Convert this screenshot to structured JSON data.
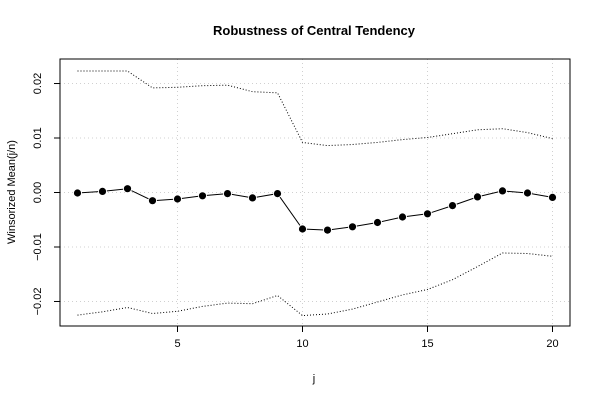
{
  "chart_data": {
    "type": "line",
    "title": "Robustness of Central Tendency",
    "xlabel": "j",
    "ylabel": "Winsorized Mean(j/n)",
    "xlim": [
      0.3,
      20.7
    ],
    "ylim": [
      -0.0245,
      0.0245
    ],
    "x_ticks": [
      5,
      10,
      15,
      20
    ],
    "x_tick_labels": [
      "5",
      "10",
      "15",
      "20"
    ],
    "y_ticks": [
      -0.02,
      -0.01,
      0.0,
      0.01,
      0.02
    ],
    "y_tick_labels": [
      "−0.02",
      "−0.01",
      "0.00",
      "0.01",
      "0.02"
    ],
    "grid": true,
    "x": [
      1,
      2,
      3,
      4,
      5,
      6,
      7,
      8,
      9,
      10,
      11,
      12,
      13,
      14,
      15,
      16,
      17,
      18,
      19,
      20
    ],
    "series": [
      {
        "role": "mean",
        "style": "solid-with-points",
        "values": [
          -0.0001,
          0.0002,
          0.0007,
          -0.0015,
          -0.0012,
          -0.0006,
          -0.0002,
          -0.001,
          -0.0002,
          -0.0067,
          -0.0069,
          -0.0063,
          -0.0055,
          -0.0045,
          -0.0039,
          -0.0024,
          -0.0008,
          0.0003,
          -0.0001,
          -0.0009
        ]
      },
      {
        "role": "upper-bound",
        "style": "dotted",
        "values": [
          0.0223,
          0.0223,
          0.0223,
          0.0192,
          0.0193,
          0.0196,
          0.0197,
          0.0185,
          0.0183,
          0.0092,
          0.0086,
          0.0088,
          0.0092,
          0.0097,
          0.0101,
          0.0108,
          0.0115,
          0.0117,
          0.011,
          0.0099
        ]
      },
      {
        "role": "lower-bound",
        "style": "dotted",
        "values": [
          -0.0225,
          -0.0219,
          -0.0211,
          -0.0222,
          -0.0218,
          -0.0209,
          -0.0203,
          -0.0204,
          -0.0189,
          -0.0226,
          -0.0223,
          -0.0214,
          -0.0201,
          -0.0188,
          -0.0178,
          -0.016,
          -0.0136,
          -0.0111,
          -0.0112,
          -0.0117
        ]
      }
    ],
    "colors": {
      "line": "#000000",
      "grid": "#d0d0d0"
    }
  }
}
